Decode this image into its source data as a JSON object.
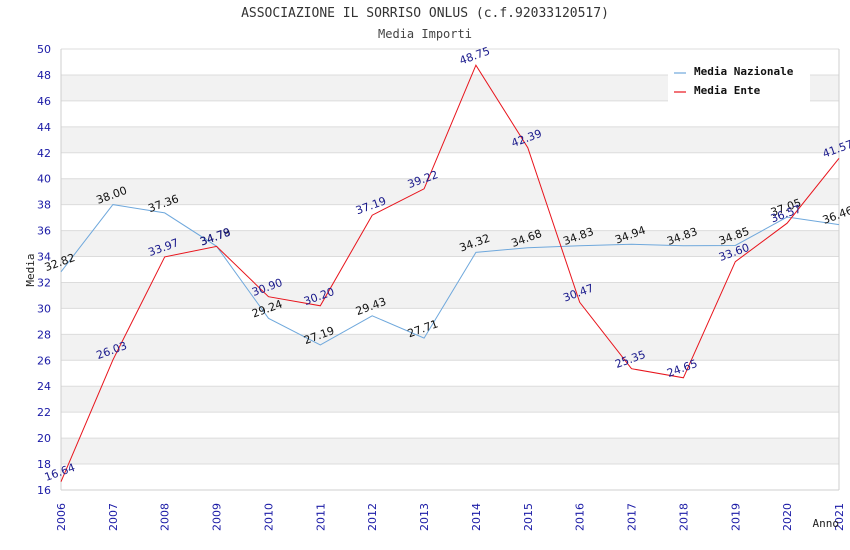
{
  "chart_data": {
    "type": "line",
    "title": "ASSOCIAZIONE IL SORRISO ONLUS (c.f.92033120517)",
    "subtitle": "Media Importi",
    "xlabel": "Anno",
    "ylabel": "Media",
    "ylim": [
      16,
      50
    ],
    "ystep": 2,
    "grid": true,
    "legend_position": "top-right",
    "x": [
      "2006",
      "2007",
      "2008",
      "2009",
      "2010",
      "2011",
      "2012",
      "2013",
      "2014",
      "2015",
      "2016",
      "2017",
      "2018",
      "2019",
      "2020",
      "2021"
    ],
    "series": [
      {
        "name": "Media Nazionale",
        "color": "#6fa8dc",
        "label_color": "#111111",
        "values": [
          32.82,
          38.0,
          37.36,
          34.79,
          29.24,
          27.19,
          29.43,
          27.71,
          34.32,
          34.68,
          34.83,
          34.94,
          34.83,
          34.85,
          37.05,
          36.46
        ],
        "labels": [
          "32.82",
          "38.00",
          "37.36",
          "34.79",
          "29.24",
          "27.19",
          "29.43",
          "27.71",
          "34.32",
          "34.68",
          "34.83",
          "34.94",
          "34.83",
          "34.85",
          "37.05",
          "36.46"
        ]
      },
      {
        "name": "Media Ente",
        "color": "#e8141c",
        "label_color": "#1a1a8c",
        "values": [
          16.64,
          26.03,
          33.97,
          34.78,
          30.9,
          30.2,
          37.19,
          39.22,
          48.75,
          42.39,
          30.47,
          25.35,
          24.65,
          33.6,
          36.57,
          41.57
        ],
        "labels": [
          "16.64",
          "26.03",
          "33.97",
          "34.78",
          "30.90",
          "30.20",
          "37.19",
          "39.22",
          "48.75",
          "42.39",
          "30.47",
          "25.35",
          "24.65",
          "33.60",
          "36.57",
          "41.57"
        ]
      }
    ]
  }
}
